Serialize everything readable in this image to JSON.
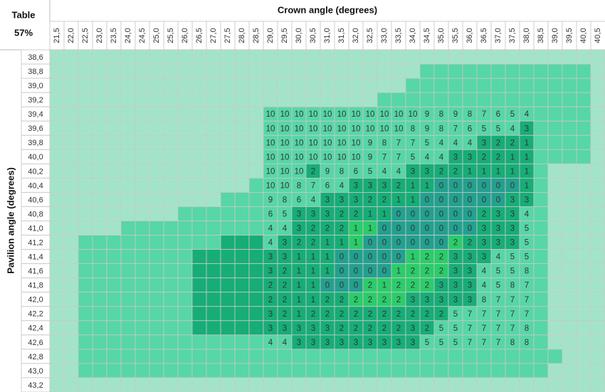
{
  "header": {
    "corner_title": "Table",
    "corner_value": "57%",
    "column_title": "Crown angle (degrees)",
    "row_title": "Pavilion angle (degrees)"
  },
  "columns": [
    "21,5",
    "22,0",
    "22,5",
    "23,0",
    "23,5",
    "24,0",
    "24,5",
    "25,0",
    "25,5",
    "26,0",
    "26,5",
    "27,0",
    "27,5",
    "28,0",
    "28,5",
    "29,0",
    "29,5",
    "30,0",
    "30,5",
    "31,0",
    "31,5",
    "32,0",
    "32,5",
    "33,0",
    "33,5",
    "34,0",
    "34,5",
    "35,0",
    "35,5",
    "36,0",
    "36,5",
    "37,0",
    "37,5",
    "38,0",
    "38,5",
    "39,0",
    "39,5",
    "40,0",
    "40,5"
  ],
  "rows": [
    "38,6",
    "38,8",
    "39,0",
    "39,2",
    "39,4",
    "39,6",
    "39,8",
    "40,0",
    "40,2",
    "40,4",
    "40,6",
    "40,8",
    "41,0",
    "41,2",
    "41,4",
    "41,6",
    "41,8",
    "42,0",
    "42,2",
    "42,4",
    "42,6",
    "42,8",
    "43,0",
    "43,2"
  ],
  "first_value_column": 15,
  "table": {
    "rows": [
      [],
      [],
      [],
      [],
      [
        10,
        10,
        10,
        10,
        10,
        10,
        10,
        10,
        10,
        10,
        10,
        9,
        8,
        9,
        8,
        7,
        6,
        5,
        4
      ],
      [
        10,
        10,
        10,
        10,
        10,
        10,
        10,
        10,
        10,
        10,
        8,
        9,
        8,
        7,
        6,
        5,
        5,
        4,
        3
      ],
      [
        10,
        10,
        10,
        10,
        10,
        10,
        10,
        9,
        8,
        7,
        7,
        5,
        4,
        4,
        4,
        3,
        2,
        2,
        1
      ],
      [
        10,
        10,
        10,
        10,
        10,
        10,
        10,
        9,
        7,
        7,
        5,
        4,
        4,
        3,
        3,
        2,
        2,
        1,
        1
      ],
      [
        10,
        10,
        10,
        2,
        9,
        8,
        6,
        5,
        4,
        4,
        3,
        3,
        2,
        2,
        1,
        1,
        1,
        1,
        1
      ],
      [
        10,
        10,
        8,
        7,
        6,
        4,
        3,
        3,
        3,
        2,
        1,
        1,
        0,
        0,
        0,
        0,
        0,
        0,
        1
      ],
      [
        9,
        8,
        6,
        4,
        3,
        3,
        3,
        2,
        2,
        1,
        1,
        0,
        0,
        0,
        0,
        0,
        0,
        3,
        3
      ],
      [
        6,
        5,
        3,
        3,
        3,
        2,
        2,
        1,
        1,
        0,
        0,
        0,
        0,
        0,
        0,
        2,
        3,
        3,
        4
      ],
      [
        4,
        4,
        3,
        2,
        2,
        2,
        1,
        1,
        0,
        0,
        0,
        0,
        0,
        0,
        0,
        3,
        3,
        3,
        5
      ],
      [
        4,
        3,
        2,
        2,
        1,
        1,
        1,
        0,
        0,
        0,
        0,
        0,
        0,
        2,
        2,
        3,
        3,
        3,
        5
      ],
      [
        3,
        3,
        1,
        1,
        1,
        0,
        0,
        0,
        0,
        0,
        1,
        2,
        2,
        3,
        3,
        3,
        4,
        5,
        5
      ],
      [
        3,
        2,
        1,
        1,
        1,
        0,
        0,
        0,
        0,
        1,
        2,
        2,
        2,
        3,
        3,
        4,
        5,
        5,
        8
      ],
      [
        2,
        2,
        1,
        1,
        0,
        0,
        0,
        2,
        1,
        2,
        2,
        2,
        3,
        3,
        3,
        4,
        5,
        8,
        7
      ],
      [
        2,
        2,
        1,
        1,
        2,
        2,
        2,
        2,
        2,
        2,
        3,
        3,
        3,
        3,
        3,
        8,
        7,
        7,
        7
      ],
      [
        3,
        2,
        1,
        2,
        2,
        2,
        2,
        2,
        2,
        2,
        2,
        2,
        2,
        5,
        7,
        7,
        7,
        7,
        7
      ],
      [
        3,
        3,
        3,
        3,
        3,
        2,
        2,
        2,
        2,
        2,
        3,
        2,
        5,
        5,
        7,
        7,
        7,
        7,
        8
      ],
      [
        4,
        4,
        3,
        3,
        3,
        3,
        3,
        3,
        3,
        3,
        3,
        5,
        5,
        5,
        7,
        7,
        7,
        8,
        8
      ],
      [],
      [],
      []
    ]
  }
}
